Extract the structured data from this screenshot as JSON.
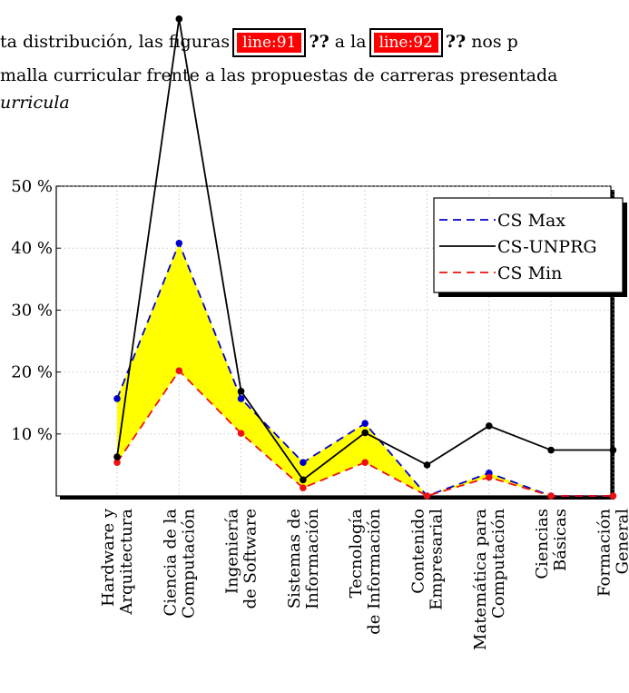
{
  "text": {
    "line1_a": "ta distribución, las figuras",
    "ref1": "line:91",
    "qq": "??",
    "line1_b": "a la",
    "ref2": "line:92",
    "line1_c": "nos p",
    "line2": "malla curricular frente a las propuestas de carreras presentada",
    "line3": "urricula"
  },
  "chart_data": {
    "type": "line",
    "categories": [
      [
        "Hardware y",
        "Arquitectura"
      ],
      [
        "Ciencia de la",
        "Computación"
      ],
      [
        "Ingeniería",
        "de Software"
      ],
      [
        "Sistemas de",
        "Información"
      ],
      [
        "Tecnología",
        "de Información"
      ],
      [
        "Contenido",
        "Empresarial"
      ],
      [
        "Matemática para",
        "Computación"
      ],
      [
        "Ciencias",
        "Básicas"
      ],
      [
        "Formación",
        "General"
      ]
    ],
    "series": [
      {
        "name": "CS Max",
        "color": "#0000cc",
        "dash": true,
        "markers": true,
        "values": [
          15.7,
          40.8,
          15.7,
          5.4,
          11.7,
          0,
          3.7,
          0,
          0
        ]
      },
      {
        "name": "CS-UNPRG",
        "color": "#000000",
        "dash": false,
        "markers": true,
        "values": [
          6.3,
          77.0,
          16.9,
          2.6,
          10.2,
          5.0,
          11.3,
          7.4,
          7.4
        ]
      },
      {
        "name": "CS Min",
        "color": "#ee1111",
        "dash": true,
        "markers": true,
        "values": [
          5.4,
          20.2,
          10.1,
          1.3,
          5.4,
          0,
          3.0,
          0,
          0
        ]
      }
    ],
    "fill_between": {
      "upper": "CS Max",
      "lower": "CS Min",
      "color": "#ffff00"
    },
    "ylim": [
      0,
      50
    ],
    "yticks": [
      10,
      20,
      30,
      40,
      50
    ],
    "ytick_labels": [
      "10 %",
      "20 %",
      "30 %",
      "40 %",
      "50 %"
    ],
    "grid": true,
    "legend": "top-right"
  }
}
